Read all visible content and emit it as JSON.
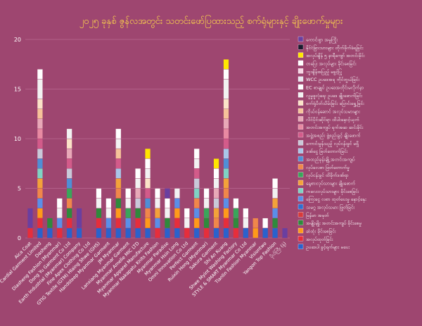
{
  "chart_data": {
    "type": "bar",
    "stacked": true,
    "title": "၂၀၂၅ ခုနှစ် ဇွန်လအတွင်း သတင်းဖော်ပြထားသည့် စက်ရုံများနှင့် ချိုးဖောက်မှုများ",
    "ylim": [
      0,
      20
    ],
    "yticks": [
      0,
      5,
      10,
      15,
      20
    ],
    "grid": true,
    "legend_position": "right",
    "categories": [
      "Aica Coat",
      "Cardial Garment Limited",
      "Dasheng",
      "Diasheng Fashion (Myanmar)",
      "Dong Yu Garment Co Ltd",
      "Earth Industrial (Myanmar) Company",
      "Fine Apex Clothing Co Ltd",
      "GTIG Textile (GTM) Hlaing Shwe (GHS)",
      "Handsteep Myanmar Garment",
      "JM Myanmar",
      "Lanxiang Myanmar Garment",
      "Myanmar Amelie MIC LTD",
      "Myanmar Apparel Manufacture",
      "Myanmar Nakapatu Knits Fashion",
      "Myanmar Paradise",
      "Myanmar Hsin Long",
      "Omni Innovation Co Ltd",
      "Perfect Garment",
      "Ruixin Hong (Myanmar)",
      "Sakura Garment",
      "Shi An Kuang",
      "Shwe Myint Washing Factory",
      "STYLE & SMART Myanmar Co Ltd",
      "Tianlin Fashion Myanmar",
      "Visiontwo",
      "Yangon Top Fashion",
      "ပိုလ်ကြီး (နံ့)"
    ],
    "legend_entries": [
      {
        "name": "ကောင်းစွာ အမှုကြိုး",
        "color": "#6a3fa0"
      },
      {
        "name": "နိုင်ငံခြားသားများ တိုက်ခိုက်ခံရခြင်း",
        "color": "#1a1a2e"
      },
      {
        "name": "အလုပ်ချိန် ၅ နာရီကျော် အတင်းခိုင်း",
        "color": "#ffe600"
      },
      {
        "name": "တပြေး အလုပ်များ ခိုင်းစေခြင်း",
        "color": "#ffffff"
      },
      {
        "name": "ဘူးချိန်အပြည့် မခွင့်ပြု",
        "color": "#f7d8e6"
      },
      {
        "name": "WCC ဥပဒေအရ ကိုင်တွယ်ခြင်း",
        "color": "#e8e8f0"
      },
      {
        "name": "EC စာချုပ် ဥပဒေအတိုင်းမလိုက်နာ",
        "color": "#ffffff"
      },
      {
        "name": "လူမှုဖူလုံရေး ဥပဒေ ချိုးဖောက်ခြင်း",
        "color": "#f2f2f2"
      },
      {
        "name": "စက်ရုံပိတ်သိမ်းခြင်း ပြောင်းရွှေ့ခြင်း",
        "color": "#fbe3c8"
      },
      {
        "name": "ကိုယ်ဝန်ဆောင် အလုပ်သမားများ",
        "color": "#f6c39a"
      },
      {
        "name": "လိင်ပိုင်းဆိုင်ရာ ထိပါးနှောင့်ယှက်",
        "color": "#e8a9b8"
      },
      {
        "name": "အတင်းအကျပ် ရက်အဆ ဆင်းခိုင်း",
        "color": "#e88aa2"
      },
      {
        "name": "အဖွဲ့အစည်း ဖွဲ့စည်းခွင့် ချိုးဖောက်",
        "color": "#d35b8a"
      },
      {
        "name": "ကောင်းမွန်သည့် လုပ်ငန်းခွင် မရှိ",
        "color": "#c9c9d9"
      },
      {
        "name": "ဒဏ်ငွေ ဖြတ်တောက်ခြင်း",
        "color": "#a9c6e8"
      },
      {
        "name": "အထည်ခုန်းချို့ အတင်းအကျပ်",
        "color": "#4f8fd6"
      },
      {
        "name": "လုပ်ခလစာ ဖြတ်တောက်မှု",
        "color": "#f0874a"
      },
      {
        "name": "လုပ်ငန်းခွင် ထိခိုက်ဒဏ်ရာ",
        "color": "#3aa55a"
      },
      {
        "name": "နေ့စားလုပ်သားများ ချိုးဖောက်",
        "color": "#f3a23a"
      },
      {
        "name": "ကလေးလုပ်သားများ ခိုင်းစေခြင်း",
        "color": "#7fd3c4"
      },
      {
        "name": "ကြေးငွေ လစာ ထုတ်ပေးမှု နှောင့်နှေး",
        "color": "#5a8fe8"
      },
      {
        "name": "သမဂ္ဂ အလုပ်သမား ဖြုတ်ခြင်း",
        "color": "#2e6fd0"
      },
      {
        "name": "မြန်မာ အမှတ်",
        "color": "#d83a3a"
      },
      {
        "name": "အမျိုးမျိုး အတင်းအကျပ် ခိုင်းစေမှု",
        "color": "#2f8a3c"
      },
      {
        "name": "ဆံထုံး ခိုင်းစေခြင်း",
        "color": "#ff9a1a"
      },
      {
        "name": "အလုပ်ထုတ်ခြင်း",
        "color": "#e62e3b"
      },
      {
        "name": "ဥပဒေပါ ခွင့်ရက်များ မပေး",
        "color": "#2a62cc"
      }
    ],
    "series": [
      {
        "name": "ဥပဒေပါ ခွင့်ရက်များ မပေး",
        "color": "#2a62cc",
        "values": [
          0,
          1,
          1,
          0,
          1,
          1,
          0,
          1,
          1,
          1,
          1,
          1,
          1,
          0,
          1,
          1,
          0,
          1,
          0,
          1,
          1,
          0,
          1,
          0,
          1,
          1,
          0
        ]
      },
      {
        "name": "အလုပ်ထုတ်ခြင်း",
        "color": "#e62e3b",
        "values": [
          1,
          1,
          0,
          1,
          1,
          0,
          0,
          1,
          0,
          1,
          0,
          1,
          0,
          1,
          0,
          1,
          1,
          0,
          1,
          0,
          1,
          1,
          0,
          0,
          0,
          0,
          0
        ]
      },
      {
        "name": "ဆံထုံး ခိုင်းစေခြင်း",
        "color": "#ff9a1a",
        "values": [
          0,
          1,
          0,
          0,
          0,
          0,
          0,
          0,
          0,
          1,
          0,
          0,
          1,
          0,
          0,
          1,
          0,
          1,
          0,
          0,
          1,
          0,
          0,
          1,
          0,
          0,
          0
        ]
      },
      {
        "name": "အမျိုးမျိုး အတင်းအကျပ် ခိုင်းစေမှု",
        "color": "#2f8a3c",
        "values": [
          0,
          0,
          1,
          0,
          1,
          0,
          0,
          1,
          0,
          1,
          0,
          1,
          0,
          0,
          1,
          0,
          0,
          0,
          1,
          0,
          0,
          1,
          0,
          0,
          0,
          1,
          0
        ]
      },
      {
        "name": "ကြေးငွေ လစာ ထုတ်ပေးမှု နှောင့်နှေး",
        "color": "#5a8fe8",
        "values": [
          0,
          1,
          0,
          1,
          0,
          0,
          0,
          0,
          1,
          0,
          1,
          0,
          0,
          1,
          0,
          1,
          0,
          1,
          0,
          0,
          1,
          0,
          0,
          0,
          0,
          1,
          0
        ]
      },
      {
        "name": "လုပ်ခလစာ ဖြတ်တောက်မှု",
        "color": "#f0874a",
        "values": [
          0,
          1,
          0,
          0,
          1,
          0,
          0,
          0,
          0,
          1,
          0,
          0,
          1,
          0,
          0,
          0,
          0,
          1,
          0,
          1,
          1,
          0,
          0,
          1,
          0,
          0,
          0
        ]
      },
      {
        "name": "လုပ်ငန်းခွင် ထိခိုက်ဒဏ်ရာ",
        "color": "#3aa55a",
        "values": [
          0,
          0,
          0,
          0,
          1,
          0,
          0,
          0,
          0,
          0,
          1,
          0,
          0,
          0,
          0,
          0,
          0,
          0,
          1,
          0,
          0,
          1,
          0,
          0,
          0,
          0,
          0
        ]
      },
      {
        "name": "နေ့စားလုပ်သားများ ချိုးဖောက်",
        "color": "#f3a23a",
        "values": [
          0,
          1,
          0,
          0,
          0,
          0,
          0,
          0,
          0,
          1,
          0,
          0,
          0,
          1,
          0,
          0,
          0,
          0,
          0,
          1,
          1,
          0,
          0,
          0,
          0,
          1,
          0
        ]
      },
      {
        "name": "ကလေးလုပ်သားများ ခိုင်းစေခြင်း",
        "color": "#7fd3c4",
        "values": [
          0,
          1,
          0,
          0,
          0,
          0,
          0,
          0,
          0,
          0,
          0,
          0,
          0,
          0,
          0,
          0,
          0,
          1,
          0,
          0,
          1,
          0,
          0,
          0,
          0,
          0,
          0
        ]
      },
      {
        "name": "အထည်ခုန်းချို့ အတင်းအကျပ်",
        "color": "#4f8fd6",
        "values": [
          0,
          1,
          0,
          0,
          1,
          0,
          0,
          0,
          0,
          0,
          0,
          0,
          1,
          0,
          0,
          0,
          0,
          0,
          0,
          0,
          1,
          0,
          0,
          0,
          0,
          0,
          0
        ]
      },
      {
        "name": "ဒဏ်ငွေ ဖြတ်တောက်ခြင်း",
        "color": "#a9c6e8",
        "values": [
          0,
          0,
          0,
          0,
          0,
          0,
          0,
          0,
          0,
          1,
          0,
          0,
          0,
          0,
          0,
          0,
          0,
          0,
          0,
          0,
          1,
          0,
          0,
          0,
          0,
          0,
          0
        ]
      },
      {
        "name": "ကောင်းမွန်သည့် လုပ်ငန်းခွင် မရှိ",
        "color": "#c9c9d9",
        "values": [
          0,
          1,
          0,
          0,
          1,
          0,
          0,
          0,
          0,
          0,
          0,
          1,
          0,
          0,
          0,
          0,
          0,
          1,
          0,
          1,
          0,
          0,
          0,
          0,
          0,
          0,
          0
        ]
      },
      {
        "name": "အဖွဲ့အစည်း ဖွဲ့စည်းခွင့် ချိုးဖောက်",
        "color": "#d35b8a",
        "values": [
          0,
          1,
          0,
          0,
          1,
          0,
          0,
          0,
          0,
          1,
          0,
          0,
          1,
          0,
          0,
          0,
          0,
          1,
          0,
          0,
          1,
          0,
          0,
          0,
          0,
          0,
          0
        ]
      },
      {
        "name": "အတင်းအကျပ် ရက်အဆ ဆင်းခိုင်း",
        "color": "#e88aa2",
        "values": [
          0,
          1,
          0,
          0,
          0,
          0,
          0,
          0,
          0,
          0,
          0,
          0,
          0,
          0,
          0,
          0,
          0,
          0,
          0,
          0,
          1,
          0,
          0,
          0,
          0,
          0,
          0
        ]
      },
      {
        "name": "လိင်ပိုင်းဆိုင်ရာ ထိပါးနှောင့်ယှက်",
        "color": "#e8a9b8",
        "values": [
          0,
          1,
          0,
          0,
          1,
          0,
          0,
          0,
          0,
          0,
          0,
          1,
          0,
          0,
          0,
          0,
          0,
          0,
          0,
          1,
          1,
          0,
          0,
          0,
          0,
          0,
          0
        ]
      },
      {
        "name": "ကိုယ်ဝန်ဆောင် အလုပ်သမားများ",
        "color": "#f6c39a",
        "values": [
          0,
          1,
          0,
          0,
          0,
          0,
          0,
          0,
          0,
          1,
          0,
          0,
          0,
          0,
          0,
          0,
          0,
          0,
          0,
          0,
          1,
          0,
          0,
          0,
          0,
          0,
          0
        ]
      },
      {
        "name": "စက်ရုံပိတ်သိမ်းခြင်း ပြောင်းရွှေ့ခြင်း",
        "color": "#fbe3c8",
        "values": [
          0,
          1,
          0,
          0,
          1,
          0,
          0,
          0,
          0,
          0,
          0,
          0,
          1,
          0,
          0,
          0,
          0,
          0,
          0,
          0,
          1,
          0,
          0,
          0,
          0,
          0,
          0
        ]
      },
      {
        "name": "လူမှုဖူလုံရေး ဥပဒေ ချိုးဖောက်ခြင်း",
        "color": "#f2f2f2",
        "values": [
          0,
          2,
          0,
          1,
          1,
          0,
          0,
          1,
          1,
          1,
          1,
          1,
          1,
          1,
          1,
          1,
          1,
          1,
          1,
          1,
          2,
          0,
          1,
          0,
          0,
          1,
          0
        ]
      },
      {
        "name": "EC စာချုပ် ဥပဒေအတိုင်းမလိုက်နာ",
        "color": "#ffffff",
        "values": [
          0,
          1,
          0,
          1,
          0,
          0,
          0,
          1,
          1,
          1,
          1,
          1,
          1,
          1,
          1,
          0,
          1,
          1,
          1,
          1,
          1,
          1,
          1,
          0,
          1,
          1,
          0
        ]
      },
      {
        "name": "ကောင်းစွာ အမှုကြိုး",
        "color": "#6a3fa0",
        "values": [
          2,
          0,
          0,
          0,
          0,
          2,
          0,
          0,
          0,
          0,
          0,
          0,
          0,
          0,
          1,
          0,
          0,
          0,
          0,
          0,
          0,
          0,
          0,
          0,
          0,
          0,
          1
        ]
      },
      {
        "name": "အလုပ်ချိန် ၅ နာရီကျော် အတင်းခိုင်း",
        "color": "#ffe600",
        "values": [
          0,
          0,
          0,
          0,
          0,
          0,
          0,
          0,
          0,
          0,
          0,
          0,
          1,
          0,
          0,
          0,
          0,
          0,
          0,
          1,
          1,
          0,
          0,
          0,
          0,
          0,
          0
        ]
      }
    ]
  }
}
